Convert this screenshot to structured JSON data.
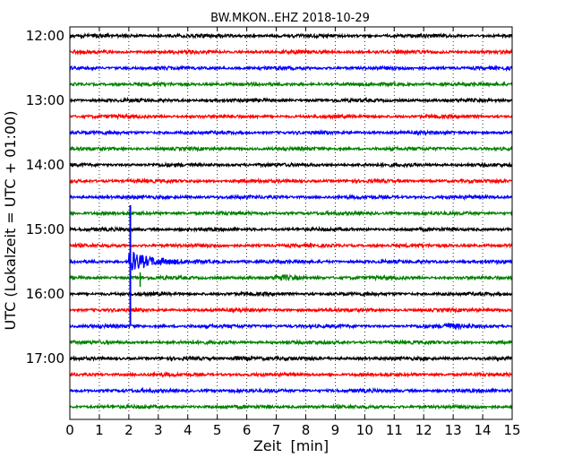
{
  "chart_data": {
    "type": "line",
    "title": "BW.MKON..EHZ 2018-10-29",
    "xlabel": "Zeit  [min]",
    "ylabel": "UTC (Lokalzeit = UTC + 01:00)",
    "xlim": [
      0,
      15
    ],
    "xticks": [
      "0",
      "1",
      "2",
      "3",
      "4",
      "5",
      "6",
      "7",
      "8",
      "9",
      "10",
      "11",
      "12",
      "13",
      "14",
      "15"
    ],
    "yticks": [
      "12:00",
      "13:00",
      "14:00",
      "15:00",
      "16:00",
      "17:00"
    ],
    "grid": true,
    "trace_interval_min": 15,
    "first_trace": "12:00",
    "trace_colors": [
      "#000000",
      "#ff0000",
      "#0000ff",
      "#008000"
    ],
    "trace_count": 24,
    "events": [
      {
        "trace_index": 14,
        "time_min": 2.05,
        "amplitude": 7.5,
        "label": ""
      },
      {
        "trace_index": 15,
        "time_min": 7.0,
        "amplitude": 1.4,
        "label": ""
      },
      {
        "trace_index": 18,
        "time_min": 12.7,
        "amplitude": 1.6,
        "label": ""
      },
      {
        "trace_index": 20,
        "time_min": 5.5,
        "amplitude": 1.2,
        "label": ""
      }
    ]
  }
}
